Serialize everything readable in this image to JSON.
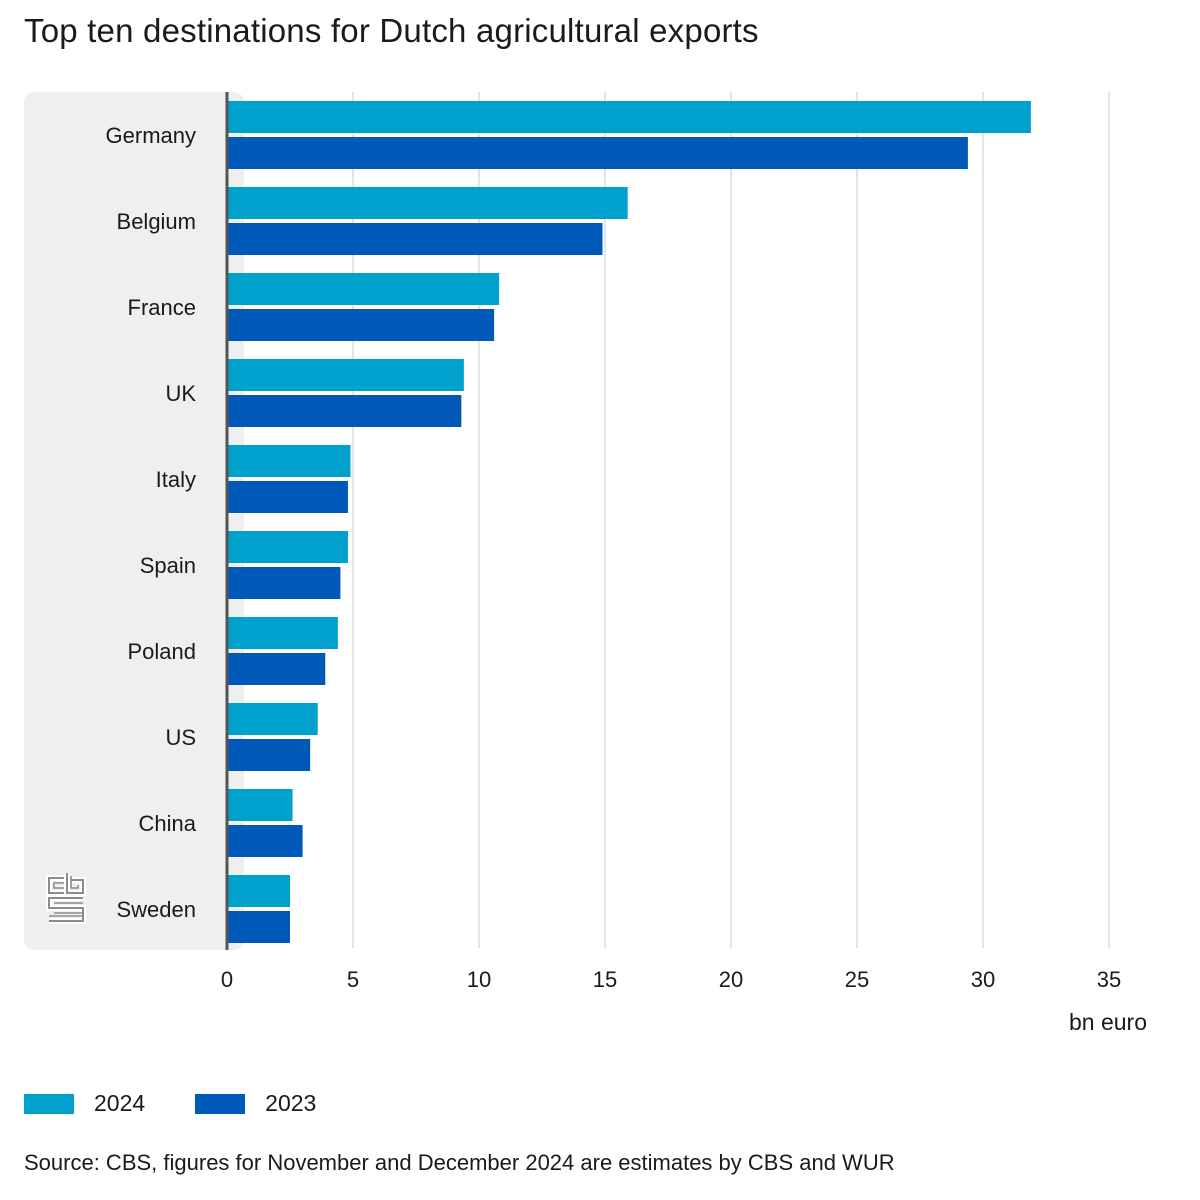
{
  "colors": {
    "series_2024": "#00a1cd",
    "series_2023": "#0058b8",
    "label_panel": "#efefef",
    "gridline": "#c8c8c8",
    "axis": "#555555",
    "logo": "#8c8c8c"
  },
  "logo": {
    "icon": "cbs-logo-icon",
    "text": "cbs"
  },
  "source": "Source: CBS, figures for November and December 2024 are estimates by CBS and WUR",
  "chart_data": {
    "type": "bar",
    "orientation": "horizontal",
    "title": "Top ten destinations for Dutch agricultural exports",
    "xlabel": "bn euro",
    "ylabel": "",
    "categories": [
      "Germany",
      "Belgium",
      "France",
      "UK",
      "Italy",
      "Spain",
      "Poland",
      "US",
      "China",
      "Sweden"
    ],
    "series": [
      {
        "name": "2024",
        "values": [
          31.9,
          15.9,
          10.8,
          9.4,
          4.9,
          4.8,
          4.4,
          3.6,
          2.6,
          2.5
        ]
      },
      {
        "name": "2023",
        "values": [
          29.4,
          14.9,
          10.6,
          9.3,
          4.8,
          4.5,
          3.9,
          3.3,
          3.0,
          2.5
        ]
      }
    ],
    "xlim": [
      0,
      35
    ],
    "xticks": [
      "0",
      "5",
      "10",
      "15",
      "20",
      "25",
      "30",
      "35"
    ],
    "grid": true,
    "legend_position": "bottom-left"
  }
}
